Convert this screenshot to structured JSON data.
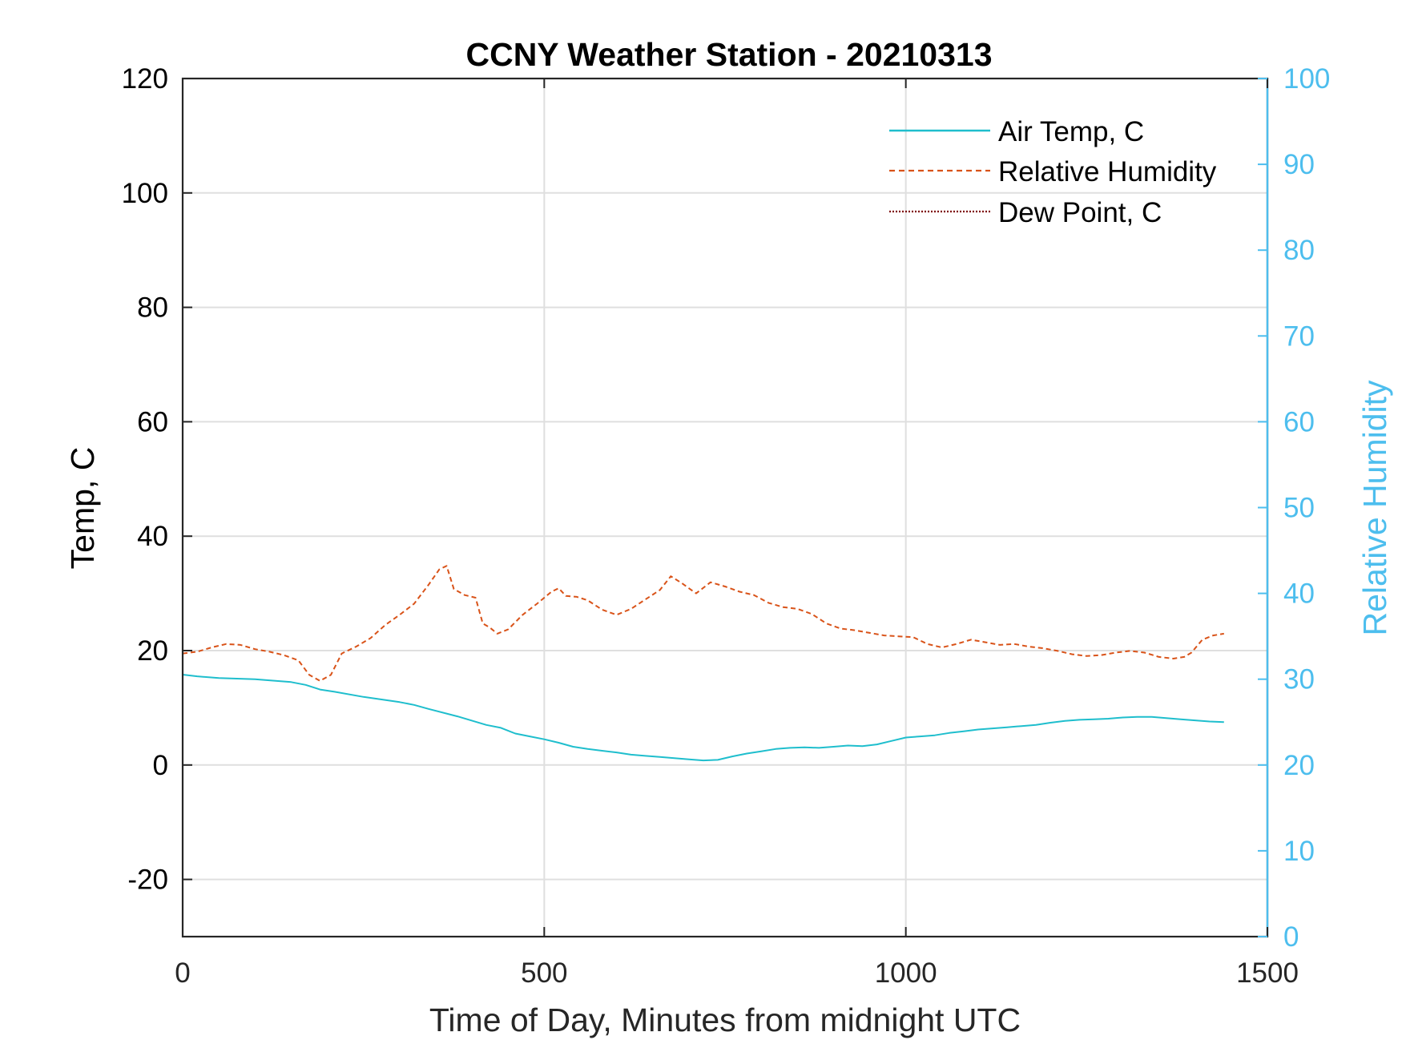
{
  "chart_data": {
    "type": "line",
    "title": "CCNY Weather Station - 20210313",
    "xlabel": "Time of Day, Minutes from midnight UTC",
    "ylabel": "Temp, C",
    "y2label": "Relative Humidity",
    "xlim": [
      0,
      1500
    ],
    "ylim": [
      -30,
      120
    ],
    "y2lim": [
      0,
      100
    ],
    "xticks": [
      0,
      500,
      1000,
      1500
    ],
    "yticks": [
      -20,
      0,
      20,
      40,
      60,
      80,
      100,
      120
    ],
    "y2ticks": [
      0,
      10,
      20,
      30,
      40,
      50,
      60,
      70,
      80,
      90,
      100
    ],
    "grid": true,
    "legend_position": "top-right",
    "colors": {
      "air_temp": "#1fbecd",
      "humidity": "#d95319",
      "dew_point": "#7e0000",
      "right_axis": "#4dbeee",
      "axis": "#262626",
      "grid": "#dfdfdf"
    },
    "series": [
      {
        "name": "Air Temp, C",
        "axis": "left",
        "style": "solid",
        "x": [
          0,
          20,
          50,
          100,
          150,
          170,
          190,
          210,
          250,
          300,
          320,
          340,
          380,
          420,
          440,
          460,
          480,
          500,
          520,
          540,
          560,
          580,
          600,
          620,
          640,
          660,
          680,
          700,
          720,
          740,
          760,
          780,
          800,
          820,
          840,
          860,
          880,
          900,
          920,
          940,
          960,
          980,
          1000,
          1020,
          1040,
          1060,
          1080,
          1100,
          1120,
          1140,
          1160,
          1180,
          1200,
          1220,
          1240,
          1260,
          1280,
          1300,
          1320,
          1340,
          1360,
          1380,
          1400,
          1420,
          1440
        ],
        "y": [
          15.8,
          15.5,
          15.2,
          15.0,
          14.5,
          14.0,
          13.2,
          12.8,
          11.9,
          11.0,
          10.5,
          9.8,
          8.5,
          7.0,
          6.5,
          5.5,
          5.0,
          4.5,
          3.9,
          3.2,
          2.8,
          2.5,
          2.2,
          1.8,
          1.6,
          1.4,
          1.2,
          1.0,
          0.8,
          0.9,
          1.5,
          2.0,
          2.4,
          2.8,
          3.0,
          3.1,
          3.0,
          3.2,
          3.4,
          3.3,
          3.6,
          4.2,
          4.8,
          5.0,
          5.2,
          5.6,
          5.9,
          6.2,
          6.4,
          6.6,
          6.8,
          7.0,
          7.4,
          7.7,
          7.9,
          8.0,
          8.1,
          8.3,
          8.4,
          8.4,
          8.2,
          8.0,
          7.8,
          7.6,
          7.5
        ]
      },
      {
        "name": "Relative Humidity",
        "axis": "right",
        "style": "dashed",
        "x": [
          0,
          20,
          40,
          60,
          80,
          100,
          120,
          140,
          160,
          175,
          190,
          205,
          220,
          240,
          260,
          280,
          300,
          320,
          340,
          355,
          365,
          375,
          390,
          405,
          415,
          425,
          435,
          450,
          470,
          490,
          510,
          520,
          530,
          545,
          560,
          580,
          600,
          620,
          640,
          660,
          675,
          690,
          710,
          730,
          750,
          770,
          790,
          810,
          830,
          850,
          870,
          890,
          910,
          930,
          950,
          970,
          990,
          1010,
          1030,
          1050,
          1070,
          1090,
          1110,
          1130,
          1150,
          1170,
          1190,
          1210,
          1230,
          1250,
          1270,
          1290,
          1310,
          1330,
          1350,
          1370,
          1385,
          1395,
          1410,
          1425,
          1440
        ],
        "y": [
          33.0,
          33.2,
          33.7,
          34.1,
          34.0,
          33.5,
          33.2,
          32.8,
          32.2,
          30.5,
          29.8,
          30.5,
          33.0,
          33.8,
          34.8,
          36.3,
          37.5,
          38.8,
          41.0,
          42.8,
          43.2,
          40.5,
          39.8,
          39.5,
          36.5,
          36.0,
          35.3,
          35.8,
          37.5,
          38.8,
          40.2,
          40.6,
          39.7,
          39.6,
          39.2,
          38.1,
          37.5,
          38.2,
          39.3,
          40.4,
          42.0,
          41.2,
          40.0,
          41.3,
          40.8,
          40.2,
          39.8,
          38.9,
          38.4,
          38.2,
          37.6,
          36.5,
          35.9,
          35.7,
          35.4,
          35.1,
          35.0,
          34.9,
          34.1,
          33.7,
          34.1,
          34.6,
          34.3,
          34.0,
          34.1,
          33.8,
          33.6,
          33.3,
          32.9,
          32.7,
          32.8,
          33.1,
          33.3,
          33.1,
          32.6,
          32.4,
          32.6,
          33.1,
          34.6,
          35.1,
          35.3
        ]
      }
    ],
    "legend": [
      {
        "label": "Air Temp, C",
        "style": "solid",
        "color": "#1fbecd"
      },
      {
        "label": "Relative Humidity",
        "style": "dashed",
        "color": "#d95319"
      },
      {
        "label": "Dew Point, C",
        "style": "dotted",
        "color": "#7e0000"
      }
    ]
  }
}
